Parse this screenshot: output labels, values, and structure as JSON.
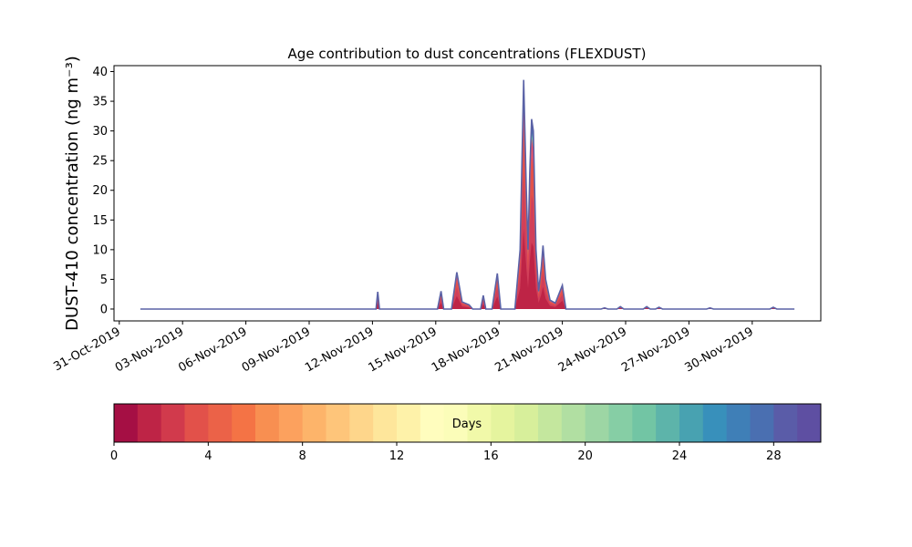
{
  "chart_data": {
    "type": "area",
    "title": "Age contribution to dust concentrations (FLEXDUST)",
    "ylabel": "DUST-410 concentration (ng m⁻³)",
    "xlabel": "",
    "x_range": [
      "2019-10-30T18:00",
      "2019-12-03T06:00"
    ],
    "ylim": [
      -2,
      41
    ],
    "y_ticks": [
      0,
      5,
      10,
      15,
      20,
      25,
      30,
      35,
      40
    ],
    "x_ticks": [
      "31-Oct-2019",
      "03-Nov-2019",
      "06-Nov-2019",
      "09-Nov-2019",
      "12-Nov-2019",
      "15-Nov-2019",
      "18-Nov-2019",
      "21-Nov-2019",
      "24-Nov-2019",
      "27-Nov-2019",
      "30-Nov-2019"
    ],
    "grid": false,
    "series_start": "2019-11-01T00:00",
    "series_end": "2019-12-02T00:00",
    "total_series": {
      "name": "",
      "points": [
        [
          "2019-11-12T04:00",
          0
        ],
        [
          "2019-11-12T06:00",
          2.9
        ],
        [
          "2019-11-12T08:00",
          0
        ],
        [
          "2019-11-15T02:00",
          0
        ],
        [
          "2019-11-15T06:00",
          3.0
        ],
        [
          "2019-11-15T09:00",
          0
        ],
        [
          "2019-11-15T18:00",
          0
        ],
        [
          "2019-11-16T00:00",
          6.2
        ],
        [
          "2019-11-16T06:00",
          1.2
        ],
        [
          "2019-11-16T14:00",
          0.7
        ],
        [
          "2019-11-16T18:00",
          0
        ],
        [
          "2019-11-17T03:00",
          0
        ],
        [
          "2019-11-17T06:00",
          2.3
        ],
        [
          "2019-11-17T09:00",
          0
        ],
        [
          "2019-11-17T16:00",
          0
        ],
        [
          "2019-11-17T22:00",
          6.0
        ],
        [
          "2019-11-18T02:00",
          0
        ],
        [
          "2019-11-18T18:00",
          0
        ],
        [
          "2019-11-19T00:00",
          10
        ],
        [
          "2019-11-19T04:00",
          38.6
        ],
        [
          "2019-11-19T07:00",
          20
        ],
        [
          "2019-11-19T09:00",
          10
        ],
        [
          "2019-11-19T11:00",
          23
        ],
        [
          "2019-11-19T13:00",
          32
        ],
        [
          "2019-11-19T15:00",
          30
        ],
        [
          "2019-11-19T18:00",
          10
        ],
        [
          "2019-11-19T21:00",
          3
        ],
        [
          "2019-11-20T00:00",
          7
        ],
        [
          "2019-11-20T02:00",
          10.7
        ],
        [
          "2019-11-20T05:00",
          5
        ],
        [
          "2019-11-20T10:00",
          1.5
        ],
        [
          "2019-11-20T16:00",
          1
        ],
        [
          "2019-11-21T00:00",
          4.0
        ],
        [
          "2019-11-21T04:00",
          0
        ],
        [
          "2019-11-22T20:00",
          0
        ],
        [
          "2019-11-23T00:00",
          0.2
        ],
        [
          "2019-11-23T04:00",
          0
        ],
        [
          "2019-11-23T14:00",
          0
        ],
        [
          "2019-11-23T18:00",
          0.4
        ],
        [
          "2019-11-23T22:00",
          0
        ],
        [
          "2019-11-24T20:00",
          0
        ],
        [
          "2019-11-25T00:00",
          0.4
        ],
        [
          "2019-11-25T04:00",
          0
        ],
        [
          "2019-11-25T10:00",
          0
        ],
        [
          "2019-11-25T14:00",
          0.3
        ],
        [
          "2019-11-25T18:00",
          0
        ],
        [
          "2019-11-27T20:00",
          0
        ],
        [
          "2019-11-28T00:00",
          0.2
        ],
        [
          "2019-11-28T04:00",
          0
        ],
        [
          "2019-11-30T20:00",
          0
        ],
        [
          "2019-12-01T00:00",
          0.3
        ],
        [
          "2019-12-01T04:00",
          0
        ]
      ]
    },
    "colorbar": {
      "label": "Days",
      "min": 0,
      "max": 30,
      "ticks": [
        0,
        4,
        8,
        12,
        16,
        20,
        24,
        28
      ],
      "colors": [
        "#a50f44",
        "#be2446",
        "#d13a4c",
        "#e2514a",
        "#eb6248",
        "#f47345",
        "#f88f51",
        "#fca15e",
        "#fdb46a",
        "#fec57a",
        "#fed68b",
        "#fee69b",
        "#fef2a9",
        "#fffdbe",
        "#fbfdb9",
        "#f1f9a9",
        "#e5f49e",
        "#d7ef9b",
        "#c4e79e",
        "#b1dfa2",
        "#9dd6a4",
        "#86cea5",
        "#72c5a4",
        "#5db4aa",
        "#48a2b1",
        "#3890bb",
        "#3f7fb7",
        "#4a6fb1",
        "#5a5ca8",
        "#5e4fa2"
      ]
    },
    "colors": {
      "outline": "#5a62a6",
      "fill_young": "#d13f5a",
      "fill_mid": "#e8516a"
    }
  }
}
